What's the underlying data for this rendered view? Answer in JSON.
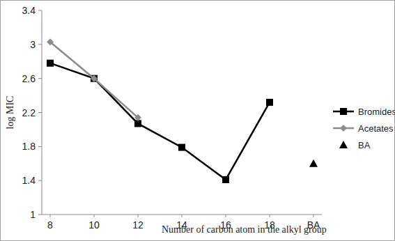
{
  "chart_data": {
    "type": "line",
    "y_label": "log MIC",
    "x_label": "Number of carbon atom in the alkyl group",
    "categories": [
      "8",
      "10",
      "12",
      "14",
      "16",
      "18",
      "BA"
    ],
    "series": [
      {
        "name": "Bromides",
        "color": "#000000",
        "marker": "square",
        "line_style": "solid",
        "values": [
          2.78,
          2.6,
          2.07,
          1.79,
          1.41,
          2.32,
          null
        ]
      },
      {
        "name": "Acetates",
        "color": "#8c8c8c",
        "marker": "diamond",
        "line_style": "solid",
        "values": [
          3.03,
          2.6,
          2.14,
          null,
          null,
          null,
          null
        ]
      },
      {
        "name": "BA",
        "color": "#000000",
        "marker": "triangle",
        "line_style": "none",
        "values": [
          null,
          null,
          null,
          null,
          null,
          null,
          1.6
        ]
      }
    ],
    "ylim": [
      1,
      3.4
    ],
    "yticks": [
      1,
      1.4,
      1.8,
      2.2,
      2.6,
      3,
      3.4
    ],
    "grid": false,
    "legend": "right"
  }
}
